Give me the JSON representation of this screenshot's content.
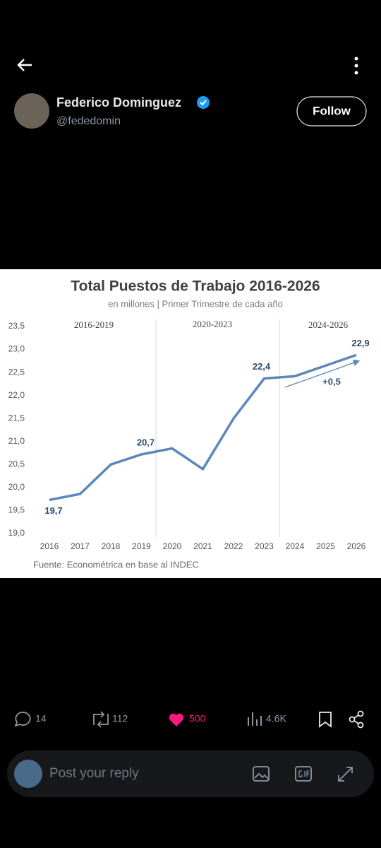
{
  "header": {
    "name": "Federico Dominguez",
    "handle": "@fededomin",
    "follow": "Follow"
  },
  "chart_data": {
    "type": "line",
    "title": "Total Puestos de Trabajo 2016-2026",
    "subtitle": "en millones | Primer Trimestre de cada año",
    "sections": [
      "2016-2019",
      "2020-2023",
      "2024-2026"
    ],
    "categories": [
      "2016",
      "2017",
      "2018",
      "2019",
      "2020",
      "2021",
      "2022",
      "2023",
      "2024",
      "2025",
      "2026"
    ],
    "values": [
      19.73,
      19.86,
      20.5,
      20.72,
      20.85,
      20.4,
      21.5,
      22.37,
      22.42,
      22.65,
      22.88
    ],
    "value_labels": [
      "19,7",
      null,
      null,
      "20,7",
      null,
      null,
      null,
      "22,4",
      null,
      null,
      "22,9"
    ],
    "color": "#5b87bb",
    "annotation": "+0,5",
    "ylim": [
      19,
      23.5
    ],
    "yticks": [
      {
        "value": 19,
        "label": "19,0"
      },
      {
        "value": 19.5,
        "label": "19,5"
      },
      {
        "value": 20,
        "label": "20,0"
      },
      {
        "value": 20.5,
        "label": "20,5"
      },
      {
        "value": 21,
        "label": "21,0"
      },
      {
        "value": 21.5,
        "label": "21,5"
      },
      {
        "value": 22,
        "label": "22,0"
      },
      {
        "value": 22.5,
        "label": "22,5"
      },
      {
        "value": 23,
        "label": "23,0"
      },
      {
        "value": 23.5,
        "label": "23,5"
      }
    ],
    "grid": false,
    "source": "Fuente: Econométrica en base al INDEC"
  },
  "actions": {
    "replies": "14",
    "reposts": "112",
    "likes": "500",
    "views": "4.6K"
  },
  "reply": {
    "placeholder": "Post your reply"
  }
}
